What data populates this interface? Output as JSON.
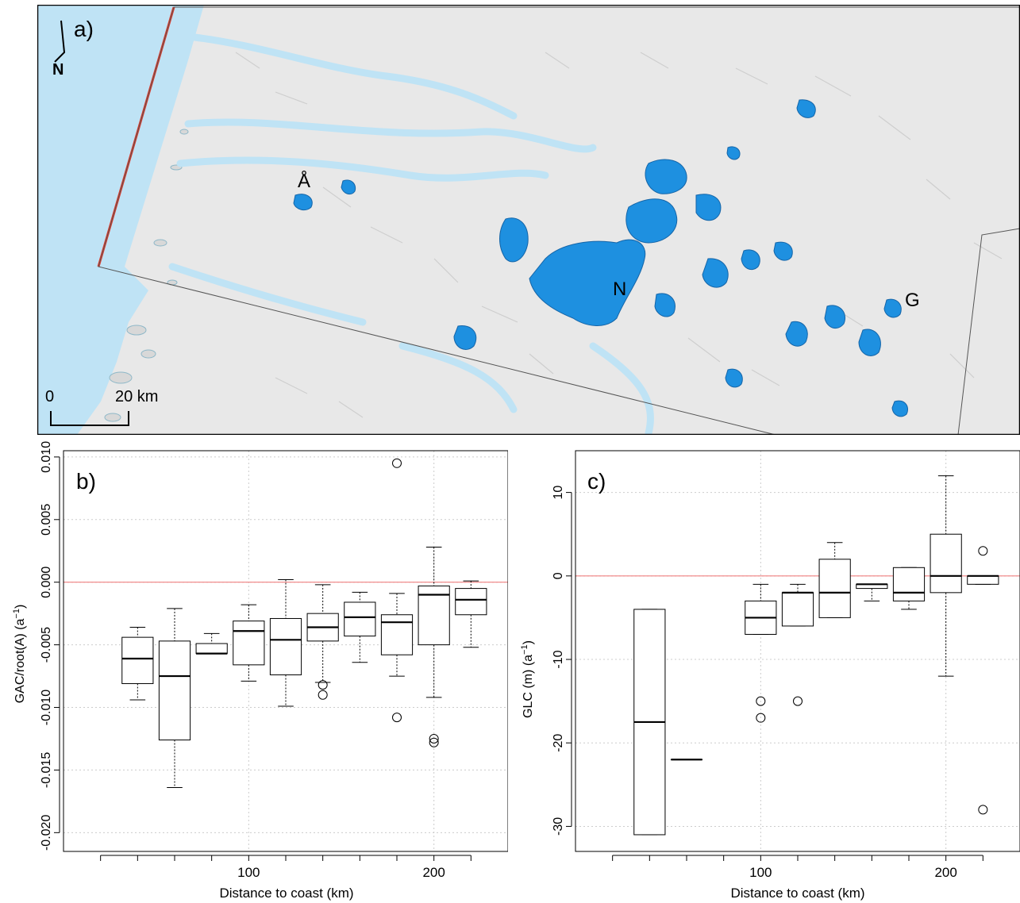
{
  "map": {
    "panel_label": "a)",
    "north_label": "N",
    "place_labels": [
      {
        "name": "Å"
      },
      {
        "name": "N"
      },
      {
        "name": "G"
      }
    ],
    "scale_bar": {
      "start": "0",
      "end": "20 km"
    },
    "colors": {
      "sea": "#bfe3f5",
      "glacier": "#1e90e0",
      "land": "#e8e8e8",
      "coast_line": "#e03a2a"
    }
  },
  "chart_data": [
    {
      "panel_label": "b)",
      "type": "boxplot",
      "xlabel": "Distance to coast (km)",
      "ylabel": "GAC/root(A) (a",
      "ylabel_sup": "−1",
      "ylabel_close": ")",
      "xlim": [
        0,
        240
      ],
      "ylim": [
        -0.0215,
        0.0105
      ],
      "xticks": [
        {
          "value": 100,
          "label": "100"
        },
        {
          "value": 200,
          "label": "200"
        }
      ],
      "yticks": [
        {
          "value": 0.01,
          "label": "0.010"
        },
        {
          "value": 0.005,
          "label": "0.005"
        },
        {
          "value": 0.0,
          "label": "0.000"
        },
        {
          "value": -0.005,
          "label": "-0.005"
        },
        {
          "value": -0.01,
          "label": "-0.010"
        },
        {
          "value": -0.015,
          "label": "-0.015"
        },
        {
          "value": -0.02,
          "label": "-0.020"
        }
      ],
      "reference_line": 0,
      "reference_color": "#f08080",
      "boxes": [
        {
          "x": 40,
          "min": -0.0094,
          "q1": -0.0081,
          "median": -0.0061,
          "q3": -0.0044,
          "max": -0.0036,
          "outliers": []
        },
        {
          "x": 60,
          "min": -0.0164,
          "q1": -0.0126,
          "median": -0.0075,
          "q3": -0.0047,
          "max": -0.0021,
          "outliers": []
        },
        {
          "x": 80,
          "min": -0.0057,
          "q1": -0.0057,
          "median": -0.0057,
          "q3": -0.0049,
          "max": -0.0041,
          "outliers": []
        },
        {
          "x": 100,
          "min": -0.0079,
          "q1": -0.0066,
          "median": -0.0039,
          "q3": -0.0031,
          "max": -0.0018,
          "outliers": []
        },
        {
          "x": 120,
          "min": -0.0099,
          "q1": -0.0074,
          "median": -0.0046,
          "q3": -0.0029,
          "max": 0.0002,
          "outliers": []
        },
        {
          "x": 140,
          "min": -0.008,
          "q1": -0.0047,
          "median": -0.0036,
          "q3": -0.0025,
          "max": -0.0002,
          "outliers": [
            -0.0082,
            -0.009
          ]
        },
        {
          "x": 160,
          "min": -0.0064,
          "q1": -0.0043,
          "median": -0.0028,
          "q3": -0.0016,
          "max": -0.0008,
          "outliers": []
        },
        {
          "x": 180,
          "min": -0.0075,
          "q1": -0.0058,
          "median": -0.0032,
          "q3": -0.0026,
          "max": -0.0009,
          "outliers": [
            0.0095,
            -0.0108
          ]
        },
        {
          "x": 200,
          "min": -0.0092,
          "q1": -0.005,
          "median": -0.001,
          "q3": -0.0003,
          "max": 0.0028,
          "outliers": [
            -0.0125,
            -0.0128
          ]
        },
        {
          "x": 220,
          "min": -0.0052,
          "q1": -0.0026,
          "median": -0.0014,
          "q3": -0.0005,
          "max": 0.0001,
          "outliers": []
        }
      ]
    },
    {
      "panel_label": "c)",
      "type": "boxplot",
      "xlabel": "Distance to coast (km)",
      "ylabel": "GLC (m) (a",
      "ylabel_sup": "−1",
      "ylabel_close": ")",
      "xlim": [
        0,
        240
      ],
      "ylim": [
        -33,
        15
      ],
      "xticks": [
        {
          "value": 100,
          "label": "100"
        },
        {
          "value": 200,
          "label": "200"
        }
      ],
      "yticks": [
        {
          "value": 10,
          "label": "10"
        },
        {
          "value": 0,
          "label": "0"
        },
        {
          "value": -10,
          "label": "-10"
        },
        {
          "value": -20,
          "label": "-20"
        },
        {
          "value": -30,
          "label": "-30"
        }
      ],
      "reference_line": 0,
      "reference_color": "#f08080",
      "boxes": [
        {
          "x": 40,
          "min": -31,
          "q1": -31,
          "median": -17.5,
          "q3": -4,
          "max": -4,
          "outliers": []
        },
        {
          "x": 60,
          "min": -22,
          "q1": -22,
          "median": -22,
          "q3": -22,
          "max": -22,
          "outliers": []
        },
        {
          "x": 100,
          "min": -7,
          "q1": -7,
          "median": -5,
          "q3": -3,
          "max": -1,
          "outliers": [
            -15,
            -17
          ]
        },
        {
          "x": 120,
          "min": -6,
          "q1": -6,
          "median": -2,
          "q3": -2,
          "max": -1,
          "outliers": [
            -15
          ]
        },
        {
          "x": 140,
          "min": -5,
          "q1": -5,
          "median": -2,
          "q3": 2,
          "max": 4,
          "outliers": []
        },
        {
          "x": 160,
          "min": -3,
          "q1": -1.5,
          "median": -1,
          "q3": -1,
          "max": -1,
          "outliers": []
        },
        {
          "x": 180,
          "min": -4,
          "q1": -3,
          "median": -2,
          "q3": 1,
          "max": 1,
          "outliers": []
        },
        {
          "x": 200,
          "min": -12,
          "q1": -2,
          "median": 0,
          "q3": 5,
          "max": 12,
          "outliers": []
        },
        {
          "x": 220,
          "min": -1,
          "q1": -1,
          "median": 0,
          "q3": 0,
          "max": 0,
          "outliers": [
            3,
            -28
          ]
        }
      ]
    }
  ]
}
